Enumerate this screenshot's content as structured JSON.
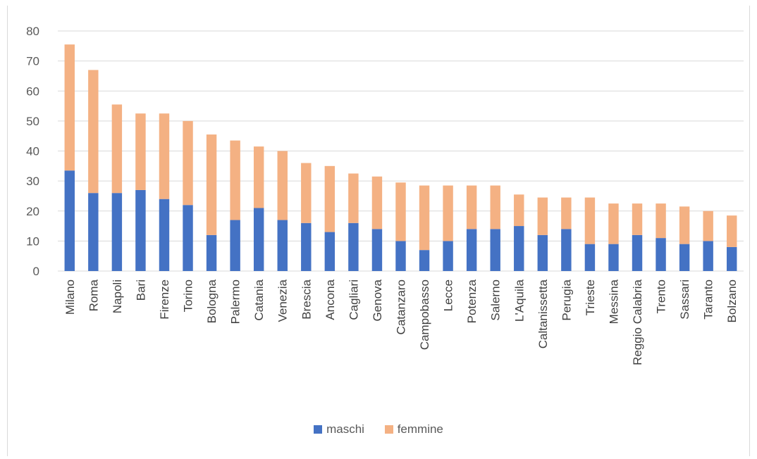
{
  "chart_data": {
    "type": "bar",
    "stacked": true,
    "categories": [
      "Milano",
      "Roma",
      "Napoli",
      "Bari",
      "Firenze",
      "Torino",
      "Bologna",
      "Palermo",
      "Catania",
      "Venezia",
      "Brescia",
      "Ancona",
      "Cagliari",
      "Genova",
      "Catanzaro",
      "Campobasso",
      "Lecce",
      "Potenza",
      "Salerno",
      "L'Aquila",
      "Caltanissetta",
      "Perugia",
      "Trieste",
      "Messina",
      "Reggio Calabria",
      "Trento",
      "Sassari",
      "Taranto",
      "Bolzano"
    ],
    "series": [
      {
        "name": "maschi",
        "color": "#4472c4",
        "values": [
          33.5,
          26,
          26,
          27,
          24,
          22,
          12,
          17,
          21,
          17,
          16,
          13,
          16,
          14,
          10,
          7,
          10,
          14,
          14,
          15,
          12,
          14,
          9,
          9,
          12,
          11,
          9,
          10,
          8
        ]
      },
      {
        "name": "femmine",
        "color": "#f4b183",
        "values": [
          42,
          41,
          29.5,
          25.5,
          28.5,
          28,
          33.5,
          26.5,
          20.5,
          23,
          20,
          22,
          16.5,
          17.5,
          19.5,
          21.5,
          18.5,
          14.5,
          14.5,
          10.5,
          12.5,
          10.5,
          15.5,
          13.5,
          10.5,
          11.5,
          12.5,
          10,
          10.5
        ]
      }
    ],
    "ylim": [
      0,
      80
    ],
    "yticks": [
      "0",
      "10",
      "20",
      "30",
      "40",
      "50",
      "60",
      "70",
      "80"
    ],
    "grid": true,
    "legend_position": "bottom",
    "title": "",
    "xlabel": "",
    "ylabel": ""
  }
}
